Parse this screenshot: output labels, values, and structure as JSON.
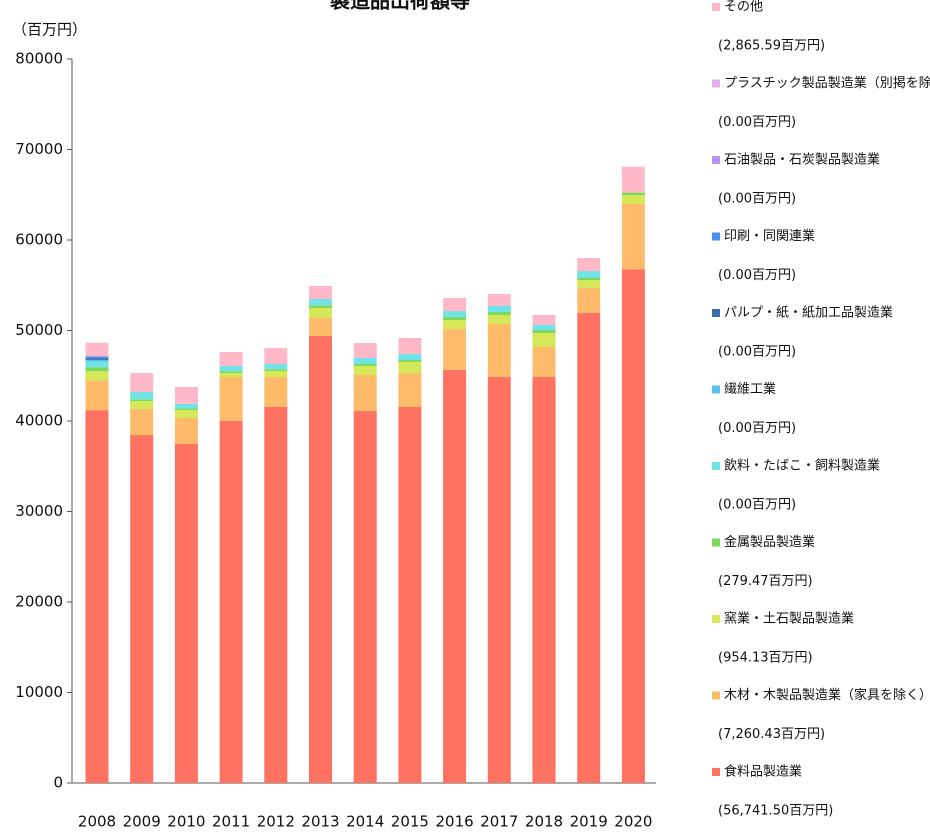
{
  "chart_data": {
    "type": "stacked_bar",
    "title": "製造品出荷額等",
    "y_label": "（百万円）",
    "categories": [
      "2008",
      "2009",
      "2010",
      "2011",
      "2012",
      "2013",
      "2014",
      "2015",
      "2016",
      "2017",
      "2018",
      "2019",
      "2020"
    ],
    "ylim": [
      0,
      80000
    ],
    "yticks": [
      0,
      10000,
      20000,
      30000,
      40000,
      50000,
      60000,
      70000,
      80000
    ],
    "grid": false,
    "legend": "right",
    "series": [
      {
        "name": "食料品製造業",
        "legend_value_label": "(56,741.50百万円)",
        "color": "#ff7262",
        "values": [
          41200,
          38450,
          37460,
          40000,
          41550,
          49390,
          41100,
          41550,
          45640,
          44860,
          44860,
          51930,
          56741.5
        ]
      },
      {
        "name": "木材・木製品製造業（家具を除く）",
        "legend_value_label": "(7,260.43百万円)",
        "color": "#ffbb6a",
        "values": [
          3300,
          2880,
          2870,
          4860,
          3310,
          1990,
          3980,
          3750,
          4520,
          5860,
          3320,
          2770,
          7260.43
        ]
      },
      {
        "name": "窯業・土石製品製造業",
        "legend_value_label": "(954.13百万円)",
        "color": "#d4e85a",
        "values": [
          1000,
          870,
          870,
          440,
          660,
          1110,
          1000,
          1220,
          1000,
          990,
          1540,
          880,
          954.13
        ]
      },
      {
        "name": "金属製品製造業",
        "legend_value_label": "(279.47百万円)",
        "color": "#7ed85e",
        "values": [
          450,
          200,
          200,
          200,
          200,
          300,
          220,
          220,
          330,
          330,
          330,
          220,
          279.47
        ]
      },
      {
        "name": "飲料・たばこ・飼料製造業",
        "legend_value_label": "(0.00百万円)",
        "color": "#6fe3e8",
        "values": [
          600,
          800,
          500,
          580,
          580,
          690,
          660,
          660,
          660,
          670,
          560,
          770,
          0
        ]
      },
      {
        "name": "繊維工業",
        "legend_value_label": "(0.00百万円)",
        "color": "#5bc0f0",
        "values": [
          200,
          0,
          0,
          0,
          0,
          0,
          0,
          0,
          0,
          0,
          0,
          0,
          0
        ]
      },
      {
        "name": "パルプ・紙・紙加工品製造業",
        "legend_value_label": "(0.00百万円)",
        "color": "#3a6ea8",
        "values": [
          200,
          0,
          0,
          0,
          0,
          0,
          0,
          0,
          0,
          0,
          0,
          0,
          0
        ]
      },
      {
        "name": "印刷・同関連業",
        "legend_value_label": "(0.00百万円)",
        "color": "#4f8ff0",
        "values": [
          200,
          0,
          0,
          0,
          0,
          0,
          0,
          0,
          0,
          0,
          0,
          0,
          0
        ]
      },
      {
        "name": "石油製品・石炭製品製造業",
        "legend_value_label": "(0.00百万円)",
        "color": "#b794f0",
        "values": [
          0,
          0,
          0,
          0,
          0,
          0,
          0,
          0,
          0,
          0,
          0,
          0,
          0
        ]
      },
      {
        "name": "プラスチック製品製造業（別掲を除く）",
        "legend_value_label": "(0.00百万円)",
        "color": "#e4b0f0",
        "values": [
          0,
          0,
          0,
          0,
          0,
          0,
          0,
          0,
          0,
          0,
          0,
          0,
          0
        ]
      },
      {
        "name": "その他",
        "legend_value_label": "(2,865.59百万円)",
        "color": "#ffb8c8",
        "values": [
          1500,
          2100,
          1860,
          1540,
          1770,
          1440,
          1660,
          1770,
          1440,
          1320,
          1100,
          1440,
          2865.59
        ]
      }
    ]
  }
}
